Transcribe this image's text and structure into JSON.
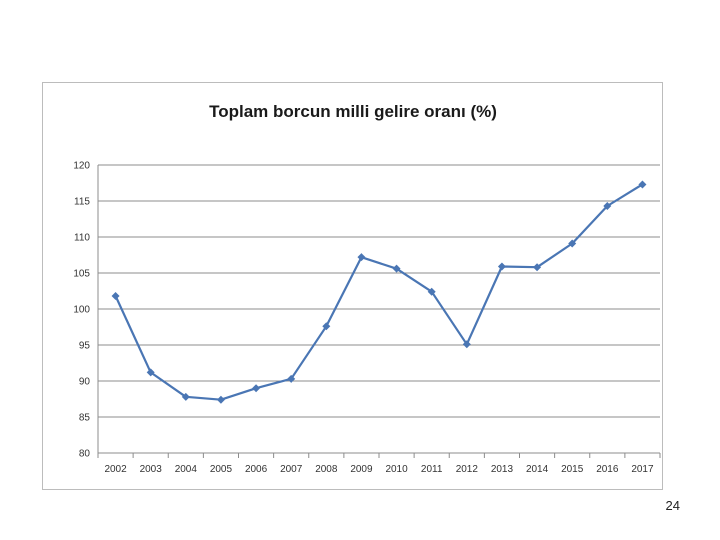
{
  "page_number": "24",
  "chart_data": {
    "type": "line",
    "title": "Toplam borcun milli gelire oranı (%)",
    "xlabel": "",
    "ylabel": "",
    "categories": [
      "2002",
      "2003",
      "2004",
      "2005",
      "2006",
      "2007",
      "2008",
      "2009",
      "2010",
      "2011",
      "2012",
      "2013",
      "2014",
      "2015",
      "2016",
      "2017"
    ],
    "series": [
      {
        "values": [
          101.8,
          91.2,
          87.8,
          87.4,
          89.0,
          90.3,
          97.6,
          107.2,
          105.6,
          102.4,
          95.1,
          105.9,
          105.8,
          109.1,
          114.3,
          117.3
        ]
      }
    ],
    "ylim": [
      80,
      120
    ],
    "yticks": [
      "80",
      "85",
      "90",
      "95",
      "100",
      "105",
      "110",
      "115",
      "120"
    ],
    "grid": true,
    "legend": "none",
    "colors": {
      "series": "#4a76b4",
      "grid": "#8c8c8c",
      "axis": "#8c8c8c"
    }
  }
}
